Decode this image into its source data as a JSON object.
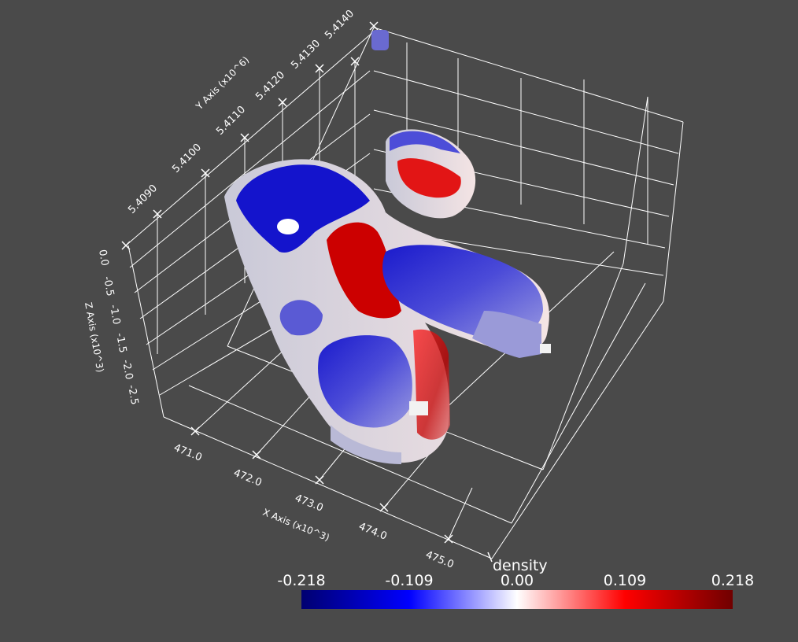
{
  "render": {
    "background": "#4a4a4a",
    "grid_color": "#ffffff"
  },
  "axes": {
    "x": {
      "title": "X Axis (x10^3)",
      "ticks": [
        "471.0",
        "472.0",
        "473.0",
        "474.0",
        "475.0"
      ]
    },
    "y": {
      "title": "Y Axis (x10^6)",
      "ticks": [
        "5.4090",
        "5.4100",
        "5.4110",
        "5.4120",
        "5.4130",
        "5.4140"
      ]
    },
    "z": {
      "title": "Z Axis (x10^3)",
      "ticks": [
        "0.0",
        "-0.5",
        "-1.0",
        "-1.5",
        "-2.0",
        "-2.5"
      ]
    }
  },
  "colorbar": {
    "title": "density",
    "labels": [
      "-0.218",
      "-0.109",
      "0.00",
      "0.109",
      "0.218"
    ],
    "colormap": "cool-to-warm",
    "colors": [
      "#000070",
      "#0000ff",
      "#ffffff",
      "#ff0000",
      "#700000"
    ]
  }
}
